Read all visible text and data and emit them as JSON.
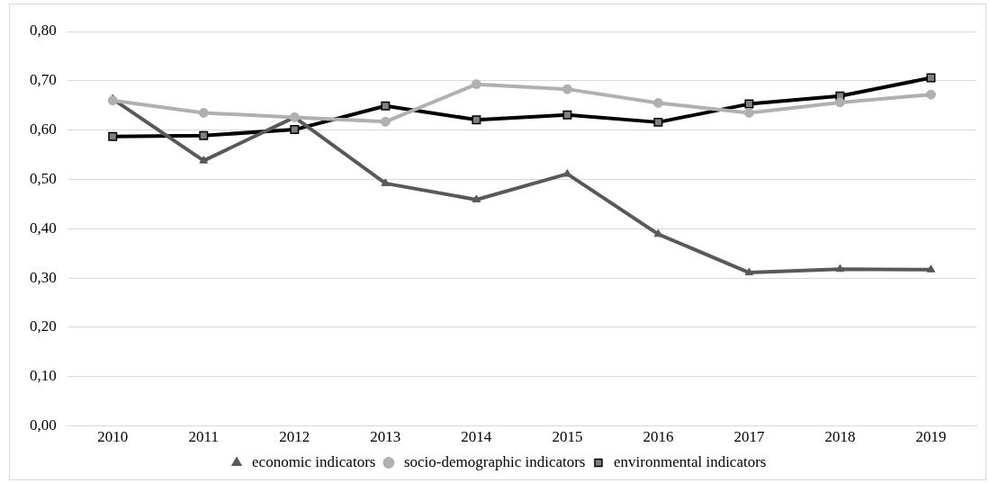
{
  "chart_data": {
    "type": "line",
    "categories": [
      "2010",
      "2011",
      "2012",
      "2013",
      "2014",
      "2015",
      "2016",
      "2017",
      "2018",
      "2019"
    ],
    "series": [
      {
        "name": "economic indicators",
        "color": "#595959",
        "marker": "triangle",
        "values": [
          0.663,
          0.538,
          0.626,
          0.492,
          0.459,
          0.511,
          0.389,
          0.311,
          0.318,
          0.317
        ]
      },
      {
        "name": "socio-demographic indicators",
        "color": "#b0b0b0",
        "marker": "circle",
        "values": [
          0.66,
          0.635,
          0.626,
          0.617,
          0.693,
          0.683,
          0.655,
          0.635,
          0.656,
          0.672
        ]
      },
      {
        "name": "environmental indicators",
        "color": "#000000",
        "marker": "square",
        "values": [
          0.587,
          0.589,
          0.601,
          0.649,
          0.621,
          0.631,
          0.616,
          0.653,
          0.669,
          0.706
        ]
      }
    ],
    "ylim": [
      0,
      0.8
    ],
    "yticks": [
      {
        "value": 0,
        "label": "0,00"
      },
      {
        "value": 0.1,
        "label": "0,10"
      },
      {
        "value": 0.2,
        "label": "0,20"
      },
      {
        "value": 0.3,
        "label": "0,30"
      },
      {
        "value": 0.4,
        "label": "0,40"
      },
      {
        "value": 0.5,
        "label": "0,50"
      },
      {
        "value": 0.6,
        "label": "0,60"
      },
      {
        "value": 0.7,
        "label": "0,70"
      },
      {
        "value": 0.8,
        "label": "0,80"
      }
    ],
    "grid": "y",
    "legend": "bottom"
  }
}
